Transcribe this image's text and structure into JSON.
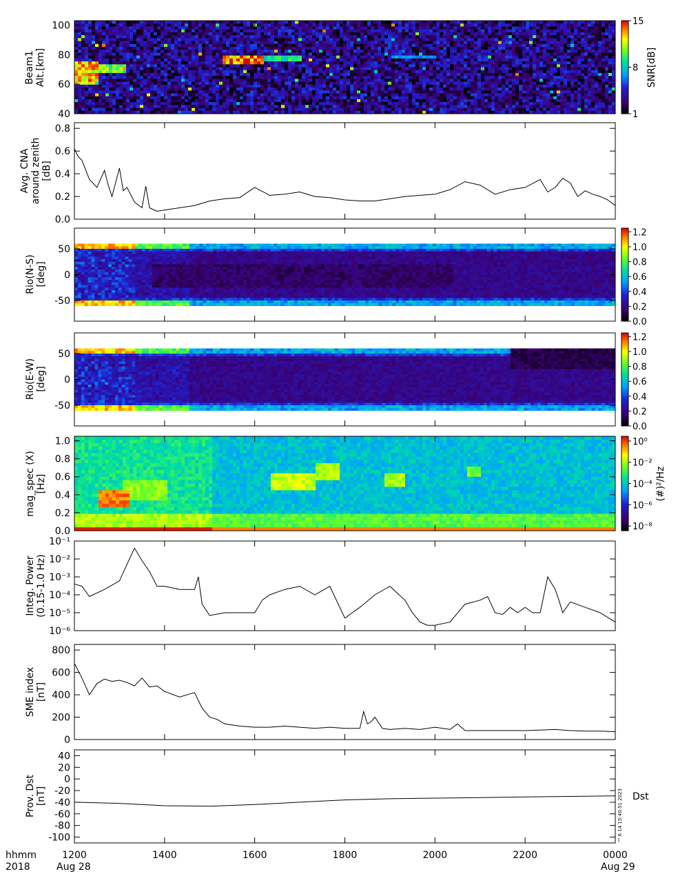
{
  "figure": {
    "x_axis": {
      "row_label_1": "hhmm",
      "row_label_2": "2018",
      "tick_labels": [
        "1200",
        "1400",
        "1600",
        "1800",
        "2000",
        "2200",
        "0000"
      ],
      "start_date": "Aug 28",
      "end_date": "Aug 29"
    },
    "stamp": "\"\" 6 14 15:40:51 2023"
  },
  "chart_data": [
    {
      "type": "heatmap",
      "ylabel": [
        "Beam1",
        "Alt.[km]"
      ],
      "ylim": [
        40,
        103
      ],
      "yticks": [
        40,
        60,
        80,
        100
      ],
      "colorbar": {
        "label": "SNR[dB]",
        "ticks": [
          "1",
          "8",
          "15"
        ],
        "range": [
          1,
          15
        ]
      },
      "features": [
        {
          "time_range": [
            "1200",
            "1230"
          ],
          "alt_range": [
            60,
            75
          ],
          "level": 14
        },
        {
          "time_range": [
            "1230",
            "1305"
          ],
          "alt_range": [
            68,
            74
          ],
          "level": 12
        },
        {
          "time_range": [
            "1515",
            "1610"
          ],
          "alt_range": [
            74,
            80
          ],
          "level": 15
        },
        {
          "time_range": [
            "1610",
            "1700"
          ],
          "alt_range": [
            75,
            79
          ],
          "level": 10
        },
        {
          "time_range": [
            "1900",
            "2000"
          ],
          "alt_range": [
            78,
            80
          ],
          "level": 8
        }
      ]
    },
    {
      "type": "line",
      "ylabel": [
        "Avg. CNA",
        "around zenith",
        "[dB]"
      ],
      "ylim": [
        0,
        0.85
      ],
      "yticks": [
        "0.0",
        "0.2",
        "0.4",
        "0.6",
        "0.8"
      ],
      "x": [
        "1200",
        "1205",
        "1210",
        "1220",
        "1230",
        "1240",
        "1245",
        "1250",
        "1300",
        "1305",
        "1310",
        "1320",
        "1330",
        "1335",
        "1340",
        "1350",
        "1400",
        "1420",
        "1440",
        "1500",
        "1520",
        "1540",
        "1600",
        "1620",
        "1640",
        "1700",
        "1720",
        "1740",
        "1800",
        "1820",
        "1840",
        "1900",
        "1920",
        "1940",
        "2000",
        "2020",
        "2040",
        "2100",
        "2120",
        "2140",
        "2200",
        "2220",
        "2230",
        "2240",
        "2250",
        "2300",
        "2310",
        "2320",
        "2330",
        "2340",
        "2350",
        "0000"
      ],
      "values": [
        0.62,
        0.55,
        0.52,
        0.35,
        0.28,
        0.43,
        0.3,
        0.2,
        0.45,
        0.25,
        0.28,
        0.15,
        0.1,
        0.29,
        0.1,
        0.07,
        0.08,
        0.1,
        0.12,
        0.16,
        0.18,
        0.19,
        0.28,
        0.21,
        0.22,
        0.24,
        0.2,
        0.19,
        0.17,
        0.16,
        0.16,
        0.18,
        0.2,
        0.21,
        0.22,
        0.26,
        0.33,
        0.3,
        0.22,
        0.26,
        0.28,
        0.35,
        0.24,
        0.28,
        0.36,
        0.32,
        0.2,
        0.25,
        0.22,
        0.2,
        0.17,
        0.12
      ]
    },
    {
      "type": "heatmap",
      "ylabel": [
        "Rio(N-S)",
        "[deg]"
      ],
      "ylim": [
        -90,
        90
      ],
      "yticks": [
        -50,
        0,
        50
      ],
      "data_range": [
        -60,
        60
      ],
      "colorbar": {
        "ticks": [
          "0.0",
          "0.2",
          "0.4",
          "0.6",
          "0.8",
          "1.0",
          "1.2"
        ],
        "range": [
          0,
          1.25
        ]
      }
    },
    {
      "type": "heatmap",
      "ylabel": [
        "Rio(E-W)",
        "[deg]"
      ],
      "ylim": [
        -90,
        90
      ],
      "yticks": [
        -50,
        0,
        50
      ],
      "data_range": [
        -60,
        60
      ],
      "colorbar": {
        "ticks": [
          "0.0",
          "0.2",
          "0.4",
          "0.6",
          "0.8",
          "1.0",
          "1.2"
        ],
        "range": [
          0,
          1.25
        ]
      }
    },
    {
      "type": "heatmap",
      "ylabel": [
        "mag_spec (X)",
        "[Hz]"
      ],
      "ylim": [
        0,
        1.05
      ],
      "yticks": [
        "0.0",
        "0.2",
        "0.4",
        "0.6",
        "0.8",
        "1.0"
      ],
      "colorbar": {
        "label": "(#)²/Hz",
        "ticks": [
          "10⁰",
          "10⁻²",
          "10⁻⁴",
          "10⁻⁶",
          "10⁻⁸"
        ],
        "log": true
      }
    },
    {
      "type": "line",
      "ylabel": [
        "Integ. Power",
        "(0.15-1.0 Hz)"
      ],
      "yscale": "log",
      "ylim": [
        1e-06,
        0.1
      ],
      "yticks": [
        "10⁻¹",
        "10⁻²",
        "10⁻³",
        "10⁻⁴",
        "10⁻⁵",
        "10⁻⁶"
      ],
      "x": [
        "1200",
        "1210",
        "1220",
        "1240",
        "1300",
        "1310",
        "1320",
        "1330",
        "1340",
        "1350",
        "1400",
        "1420",
        "1440",
        "1445",
        "1450",
        "1500",
        "1520",
        "1540",
        "1600",
        "1610",
        "1620",
        "1640",
        "1700",
        "1720",
        "1740",
        "1800",
        "1810",
        "1820",
        "1840",
        "1900",
        "1920",
        "1930",
        "1940",
        "1950",
        "2000",
        "2020",
        "2040",
        "2100",
        "2110",
        "2120",
        "2130",
        "2140",
        "2150",
        "2200",
        "2210",
        "2220",
        "2230",
        "2240",
        "2245",
        "2250",
        "2300",
        "2320",
        "2340",
        "0000"
      ],
      "values": [
        0.0004,
        0.0003,
        8e-05,
        0.0002,
        0.0006,
        0.005,
        0.04,
        0.008,
        0.002,
        0.0003,
        0.0003,
        0.0002,
        0.0002,
        0.001,
        3e-05,
        7e-06,
        1e-05,
        1e-05,
        1e-05,
        5e-05,
        0.0001,
        0.0002,
        0.0003,
        0.0001,
        0.0003,
        5e-06,
        1e-05,
        2e-05,
        0.0001,
        0.0003,
        5e-05,
        1e-05,
        3e-06,
        2e-06,
        2e-06,
        3e-06,
        3e-05,
        5e-05,
        8e-05,
        1e-05,
        8e-06,
        2e-05,
        1e-05,
        2e-05,
        1e-05,
        1e-05,
        0.001,
        0.0002,
        5e-05,
        1e-05,
        4e-05,
        2e-05,
        1e-05,
        3e-06
      ]
    },
    {
      "type": "line",
      "ylabel": [
        "SME index",
        "[nT]"
      ],
      "ylim": [
        0,
        850
      ],
      "yticks": [
        0,
        200,
        400,
        600,
        800
      ],
      "x": [
        "1200",
        "1210",
        "1220",
        "1230",
        "1240",
        "1250",
        "1300",
        "1310",
        "1320",
        "1330",
        "1340",
        "1350",
        "1400",
        "1420",
        "1440",
        "1450",
        "1500",
        "1510",
        "1520",
        "1540",
        "1600",
        "1620",
        "1640",
        "1700",
        "1720",
        "1740",
        "1800",
        "1820",
        "1825",
        "1830",
        "1835",
        "1840",
        "1850",
        "1900",
        "1920",
        "1940",
        "2000",
        "2020",
        "2030",
        "2040",
        "2100",
        "2120",
        "2140",
        "2200",
        "2220",
        "2240",
        "2300",
        "2320",
        "2340",
        "0000"
      ],
      "values": [
        680,
        550,
        400,
        500,
        540,
        520,
        530,
        510,
        480,
        550,
        470,
        480,
        430,
        380,
        420,
        280,
        200,
        180,
        140,
        120,
        110,
        110,
        120,
        110,
        100,
        110,
        100,
        100,
        250,
        140,
        160,
        200,
        100,
        90,
        100,
        90,
        110,
        90,
        140,
        80,
        80,
        80,
        80,
        80,
        85,
        90,
        80,
        75,
        75,
        70
      ]
    },
    {
      "type": "line",
      "ylabel": [
        "Prov. Dst",
        "[nT]"
      ],
      "legend": "Dst",
      "ylim": [
        -110,
        50
      ],
      "yticks": [
        -100,
        -80,
        -60,
        -40,
        -20,
        0,
        20,
        40
      ],
      "x": [
        "1200",
        "1300",
        "1400",
        "1500",
        "1600",
        "1700",
        "1800",
        "1900",
        "2000",
        "2100",
        "2200",
        "2300",
        "0000"
      ],
      "values": [
        -40,
        -42,
        -46,
        -47,
        -44,
        -40,
        -36,
        -34,
        -33,
        -32,
        -31,
        -30,
        -29
      ]
    }
  ]
}
